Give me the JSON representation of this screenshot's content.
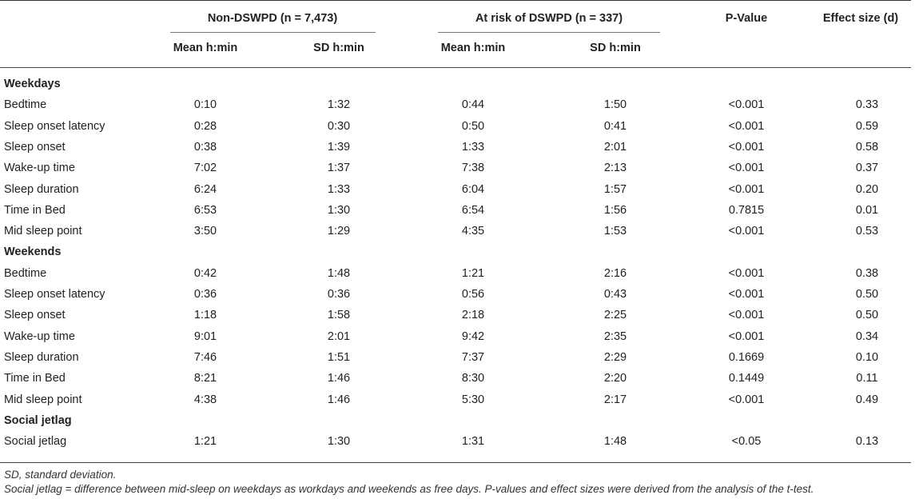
{
  "header": {
    "group1": "Non-DSWPD (n = 7,473)",
    "group2": "At risk of DSWPD (n = 337)",
    "pvalue": "P-Value",
    "effect": "Effect size (d)",
    "mean": "Mean h:min",
    "sd": "SD h:min"
  },
  "sections": [
    {
      "title": "Weekdays",
      "rows": [
        [
          "Bedtime",
          "0:10",
          "1:32",
          "0:44",
          "1:50",
          "<0.001",
          "0.33"
        ],
        [
          "Sleep onset latency",
          "0:28",
          "0:30",
          "0:50",
          "0:41",
          "<0.001",
          "0.59"
        ],
        [
          "Sleep onset",
          "0:38",
          "1:39",
          "1:33",
          "2:01",
          "<0.001",
          "0.58"
        ],
        [
          "Wake-up time",
          "7:02",
          "1:37",
          "7:38",
          "2:13",
          "<0.001",
          "0.37"
        ],
        [
          "Sleep duration",
          "6:24",
          "1:33",
          "6:04",
          "1:57",
          "<0.001",
          "0.20"
        ],
        [
          "Time in Bed",
          "6:53",
          "1:30",
          "6:54",
          "1:56",
          "0.7815",
          "0.01"
        ],
        [
          "Mid sleep point",
          "3:50",
          "1:29",
          "4:35",
          "1:53",
          "<0.001",
          "0.53"
        ]
      ]
    },
    {
      "title": "Weekends",
      "rows": [
        [
          "Bedtime",
          "0:42",
          "1:48",
          "1:21",
          "2:16",
          "<0.001",
          "0.38"
        ],
        [
          "Sleep onset latency",
          "0:36",
          "0:36",
          "0:56",
          "0:43",
          "<0.001",
          "0.50"
        ],
        [
          "Sleep onset",
          "1:18",
          "1:58",
          "2:18",
          "2:25",
          "<0.001",
          "0.50"
        ],
        [
          "Wake-up time",
          "9:01",
          "2:01",
          "9:42",
          "2:35",
          "<0.001",
          "0.34"
        ],
        [
          "Sleep duration",
          "7:46",
          "1:51",
          "7:37",
          "2:29",
          "0.1669",
          "0.10"
        ],
        [
          "Time in Bed",
          "8:21",
          "1:46",
          "8:30",
          "2:20",
          "0.1449",
          "0.11"
        ],
        [
          "Mid sleep point",
          "4:38",
          "1:46",
          "5:30",
          "2:17",
          "<0.001",
          "0.49"
        ]
      ]
    },
    {
      "title": "Social jetlag",
      "rows": [
        [
          "Social jetlag",
          "1:21",
          "1:30",
          "1:31",
          "1:48",
          "<0.05",
          "0.13"
        ]
      ]
    }
  ],
  "footnotes": [
    "SD, standard deviation.",
    "Social jetlag = difference between mid-sleep on weekdays as workdays and weekends as free days. P-values and effect sizes were derived from the analysis of the t-test."
  ]
}
